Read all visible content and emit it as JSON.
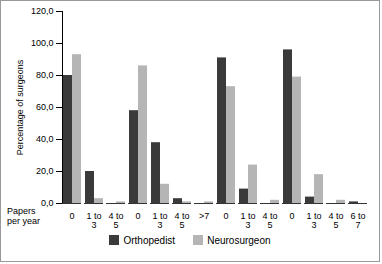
{
  "chart_data": {
    "type": "bar",
    "ylabel": "Percentage of surgeons",
    "xlabel": "Papers per year",
    "categories": [
      "0",
      "1 to 3",
      "4 to 5",
      "0",
      "1 to 3",
      "4 to 5",
      ">7",
      "0",
      "1 to 3",
      "4 to 5",
      "0",
      "1 to 3",
      "4 to 5",
      "6 to 7"
    ],
    "series": [
      {
        "name": "Orthopedist",
        "color": "#3a3a3a",
        "values": [
          80,
          20,
          0,
          58,
          38,
          3,
          0,
          91,
          9,
          0,
          96,
          4,
          0,
          1
        ]
      },
      {
        "name": "Neurosurgeon",
        "color": "#b5b5b5",
        "values": [
          93,
          3,
          1,
          86,
          12,
          1,
          1,
          73,
          24,
          2,
          79,
          18,
          2,
          0
        ]
      }
    ],
    "ylim": [
      0,
      120
    ],
    "yticks": [
      {
        "value": 0,
        "label": "0,0"
      },
      {
        "value": 20,
        "label": "20,0"
      },
      {
        "value": 40,
        "label": "40,0"
      },
      {
        "value": 60,
        "label": "60,0"
      },
      {
        "value": 80,
        "label": "80,0"
      },
      {
        "value": 100,
        "label": "100,0"
      },
      {
        "value": 120,
        "label": "120,0"
      }
    ],
    "grid": false,
    "legend": "bottom"
  }
}
